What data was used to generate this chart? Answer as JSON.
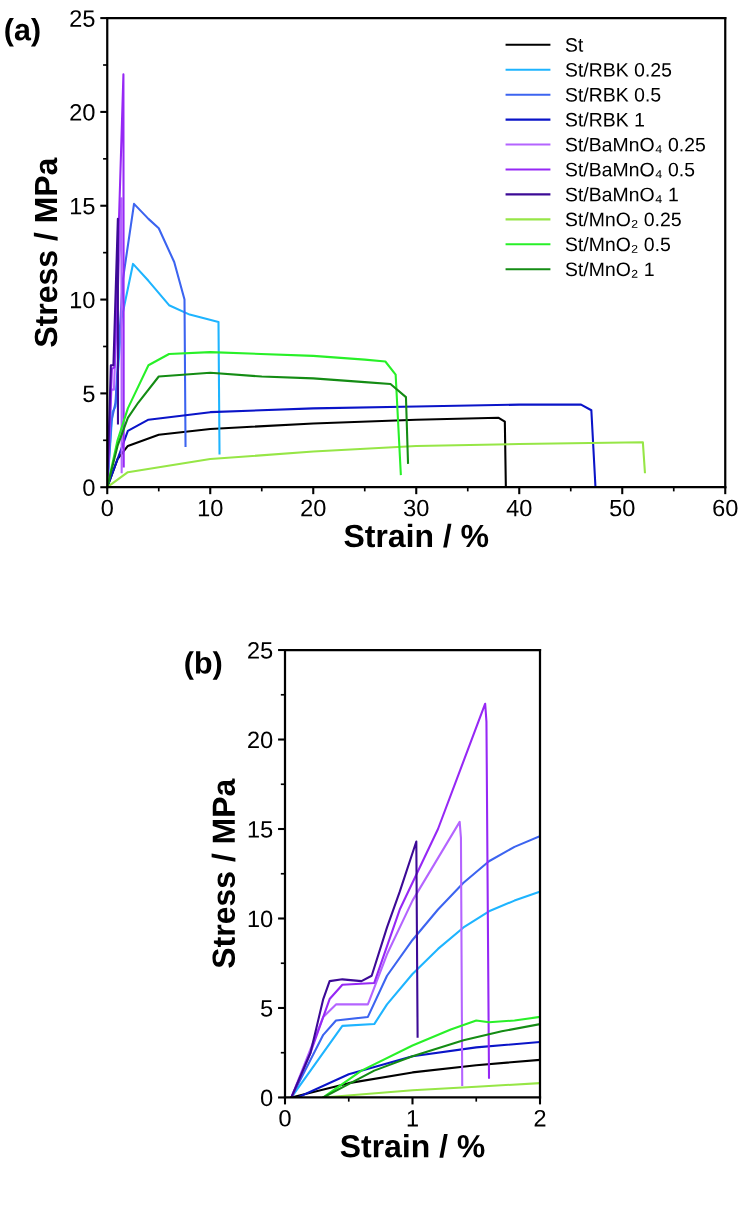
{
  "chart_data": [
    {
      "type": "line",
      "annotations": [
        "(a)"
      ],
      "xlabel": "Strain / %",
      "ylabel": "Stress / MPa",
      "xlim": [
        0,
        60
      ],
      "ylim": [
        0,
        25
      ],
      "xticks": [
        0,
        10,
        20,
        30,
        40,
        50,
        60
      ],
      "yticks": [
        0,
        5,
        10,
        15,
        20,
        25
      ],
      "legend": "top right",
      "grid": false,
      "marker": "none",
      "line_style": "solid",
      "series": [
        {
          "name": "St",
          "color": "#000000",
          "x": [
            0,
            1,
            2,
            5,
            10,
            20,
            30,
            38,
            38.6,
            38.7
          ],
          "values": [
            0,
            1.5,
            2.2,
            2.8,
            3.1,
            3.4,
            3.6,
            3.7,
            3.5,
            0
          ]
        },
        {
          "name": "St/RBK 0.25",
          "color": "#1eb4ff",
          "x": [
            0,
            0.5,
            0.8,
            1.4,
            2.5,
            4,
            6,
            8,
            10.8,
            10.9
          ],
          "values": [
            0,
            4,
            4.3,
            9,
            11.9,
            11,
            9.7,
            9.2,
            8.8,
            1.8
          ]
        },
        {
          "name": "St/RBK 0.5",
          "color": "#3c64f0",
          "x": [
            0,
            0.4,
            0.8,
            1.5,
            2.6,
            4,
            5,
            6.5,
            7.5,
            7.6
          ],
          "values": [
            0,
            3.5,
            4.5,
            11,
            15.1,
            14.3,
            13.8,
            12,
            10,
            2.2
          ]
        },
        {
          "name": "St/RBK 1",
          "color": "#0a14c8",
          "x": [
            0,
            2,
            4,
            10,
            20,
            30,
            40,
            46,
            47,
            47.4
          ],
          "values": [
            0,
            3,
            3.6,
            4,
            4.2,
            4.3,
            4.4,
            4.4,
            4.1,
            0
          ]
        },
        {
          "name": "St/BaMnO₄ 0.25",
          "color": "#b464ff",
          "x": [
            0,
            0.4,
            0.65,
            1.37,
            1.4
          ],
          "values": [
            0,
            5.2,
            5.2,
            15.4,
            0.8
          ]
        },
        {
          "name": "St/BaMnO₄ 0.5",
          "color": "#9628f5",
          "x": [
            0,
            0.45,
            0.7,
            1.57,
            1.6
          ],
          "values": [
            0,
            6.3,
            6.4,
            22,
            1.1
          ]
        },
        {
          "name": "St/BaMnO₄ 1",
          "color": "#3c0a96",
          "x": [
            0,
            0.35,
            0.6,
            1.03,
            1.04
          ],
          "values": [
            0,
            6.5,
            6.5,
            14.3,
            3.4
          ]
        },
        {
          "name": "St/MnO₂ 0.25",
          "color": "#96e646",
          "x": [
            0,
            2,
            10,
            20,
            30,
            40,
            52,
            52.2
          ],
          "values": [
            0,
            0.8,
            1.5,
            1.9,
            2.2,
            2.3,
            2.4,
            0.8
          ]
        },
        {
          "name": "St/MnO₂ 0.5",
          "color": "#28f028",
          "x": [
            0,
            1,
            2,
            4,
            6,
            10,
            20,
            25,
            27,
            28,
            28.5
          ],
          "values": [
            0,
            2.5,
            4.2,
            6.5,
            7.1,
            7.2,
            7.0,
            6.8,
            6.7,
            6,
            0.7
          ]
        },
        {
          "name": "St/MnO₂ 1",
          "color": "#148c14",
          "x": [
            0,
            1,
            2,
            3,
            5,
            10,
            15,
            20,
            25,
            27.5,
            29,
            29.2
          ],
          "values": [
            0,
            2.2,
            3.7,
            4.5,
            5.9,
            6.1,
            5.9,
            5.8,
            5.6,
            5.5,
            4.8,
            1.3
          ]
        }
      ]
    },
    {
      "type": "line",
      "annotations": [
        "(b)"
      ],
      "xlabel": "Strain / %",
      "ylabel": "Stress / MPa",
      "xlim": [
        0,
        2
      ],
      "ylim": [
        0,
        25
      ],
      "xticks": [
        0,
        1,
        2
      ],
      "yticks": [
        0,
        5,
        10,
        15,
        20,
        25
      ],
      "legend": false,
      "grid": false,
      "marker": "none",
      "line_style": "solid",
      "series": [
        {
          "color": "#000000",
          "x": [
            0.05,
            0.5,
            1.0,
            1.5,
            2
          ],
          "values": [
            0,
            0.8,
            1.4,
            1.8,
            2.1
          ]
        },
        {
          "color": "#1eb4ff",
          "x": [
            0.05,
            0.45,
            0.7,
            0.8,
            1.0,
            1.2,
            1.4,
            1.6,
            1.8,
            2
          ],
          "values": [
            0,
            4,
            4.1,
            5.2,
            6.9,
            8.3,
            9.5,
            10.4,
            11,
            11.5
          ]
        },
        {
          "color": "#3c64f0",
          "x": [
            0.05,
            0.3,
            0.4,
            0.65,
            0.8,
            1.0,
            1.2,
            1.4,
            1.6,
            1.8,
            2
          ],
          "values": [
            0,
            3.5,
            4.3,
            4.5,
            6.8,
            8.8,
            10.5,
            12,
            13.2,
            14,
            14.6
          ]
        },
        {
          "color": "#0a14c8",
          "x": [
            0.1,
            0.5,
            1.0,
            1.5,
            2
          ],
          "values": [
            0,
            1.3,
            2.3,
            2.8,
            3.1
          ]
        },
        {
          "color": "#b464ff",
          "x": [
            0.05,
            0.3,
            0.4,
            0.65,
            0.8,
            1.0,
            1.37,
            1.38,
            1.39
          ],
          "values": [
            0,
            4.5,
            5.2,
            5.2,
            8,
            11,
            15.4,
            14.5,
            0.7
          ]
        },
        {
          "color": "#9628f5",
          "x": [
            0.05,
            0.2,
            0.35,
            0.45,
            0.7,
            0.9,
            1.2,
            1.57,
            1.58,
            1.59,
            1.6
          ],
          "values": [
            0,
            2.5,
            5.5,
            6.3,
            6.4,
            10.5,
            15,
            22,
            21,
            11,
            1.1
          ]
        },
        {
          "color": "#3c0a96",
          "x": [
            0.05,
            0.2,
            0.3,
            0.35,
            0.45,
            0.6,
            0.68,
            0.8,
            0.9,
            1.03,
            1.04
          ],
          "values": [
            0,
            2.5,
            5.5,
            6.5,
            6.6,
            6.5,
            6.8,
            9.5,
            11.5,
            14.3,
            3.4
          ]
        },
        {
          "color": "#96e646",
          "x": [
            0.3,
            1.0,
            1.5,
            2
          ],
          "values": [
            0,
            0.4,
            0.6,
            0.8
          ]
        },
        {
          "color": "#28f028",
          "x": [
            0.3,
            0.6,
            1.0,
            1.3,
            1.5,
            1.6,
            1.8,
            2
          ],
          "values": [
            0,
            1.5,
            2.9,
            3.8,
            4.3,
            4.2,
            4.3,
            4.5
          ]
        },
        {
          "color": "#148c14",
          "x": [
            0.3,
            0.7,
            1.0,
            1.4,
            1.7,
            2
          ],
          "values": [
            0,
            1.5,
            2.3,
            3.2,
            3.7,
            4.1
          ]
        }
      ]
    }
  ]
}
